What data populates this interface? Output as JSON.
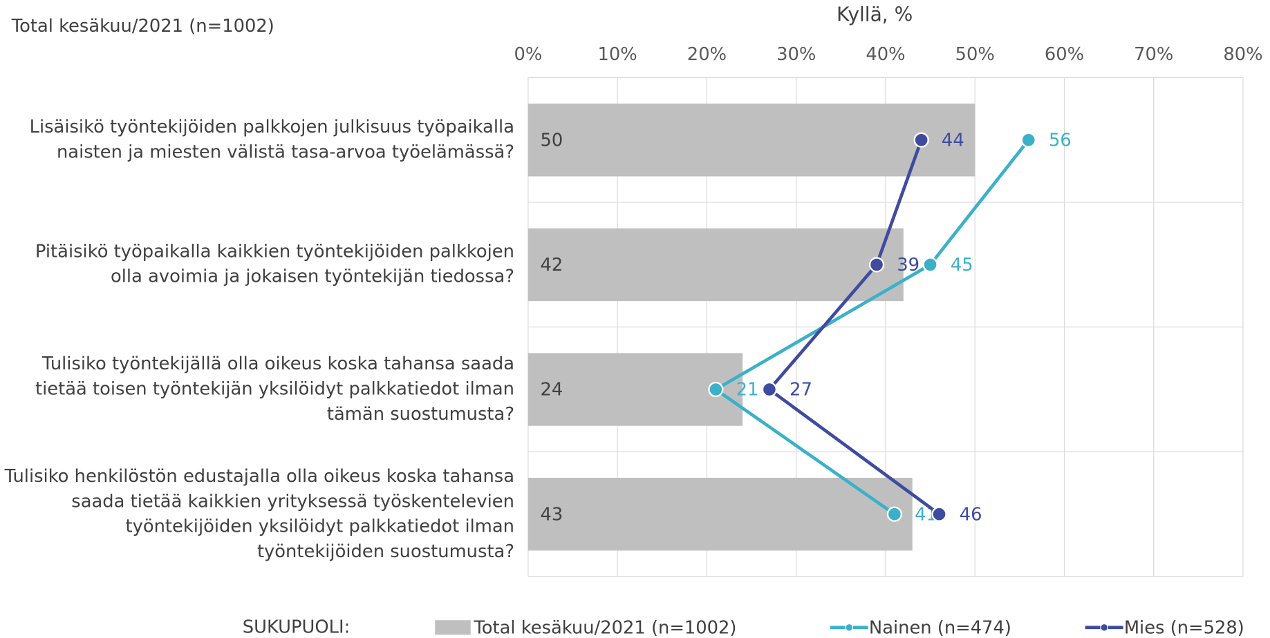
{
  "chart_data": {
    "type": "bar",
    "orientation": "horizontal",
    "title": "Kyllä, %",
    "subtitle": "Total kesäkuu/2021 (n=1002)",
    "legend_title": "SUKUPUOLI:",
    "categories": [
      "Lisäisikö työntekijöiden palkkojen julkisuus työpaikalla naisten ja miesten välistä tasa-arvoa työelämässä?",
      "Pitäisikö työpaikalla kaikkien työntekijöiden palkkojen olla avoimia ja jokaisen työntekijän tiedossa?",
      "Tulisiko työntekijällä olla oikeus koska tahansa saada tietää toisen työntekijän yksilöidyt palkkatiedot ilman tämän suostumusta?",
      "Tulisiko henkilöstön edustajalla olla oikeus koska tahansa saada tietää kaikkien yrityksessä työskentelevien työntekijöiden yksilöidyt palkkatiedot ilman työntekijöiden suostumusta?"
    ],
    "series": [
      {
        "name": "Total kesäkuu/2021 (n=1002)",
        "type": "bar",
        "color": "#bfbfbf",
        "values": [
          50,
          42,
          24,
          43
        ]
      },
      {
        "name": "Nainen (n=474)",
        "type": "line",
        "color": "#3bb1c9",
        "values": [
          56,
          45,
          21,
          41
        ]
      },
      {
        "name": "Mies (n=528)",
        "type": "line",
        "color": "#3f4b9f",
        "values": [
          44,
          39,
          27,
          46
        ]
      }
    ],
    "xlim": [
      0,
      80
    ],
    "xticks": [
      {
        "value": 0,
        "label": "0%"
      },
      {
        "value": 10,
        "label": "10%"
      },
      {
        "value": 20,
        "label": "20%"
      },
      {
        "value": 30,
        "label": "30%"
      },
      {
        "value": 40,
        "label": "40%"
      },
      {
        "value": 50,
        "label": "50%"
      },
      {
        "value": 60,
        "label": "60%"
      },
      {
        "value": 70,
        "label": "70%"
      },
      {
        "value": 80,
        "label": "80%"
      }
    ],
    "grid": true,
    "legend": "bottom"
  }
}
